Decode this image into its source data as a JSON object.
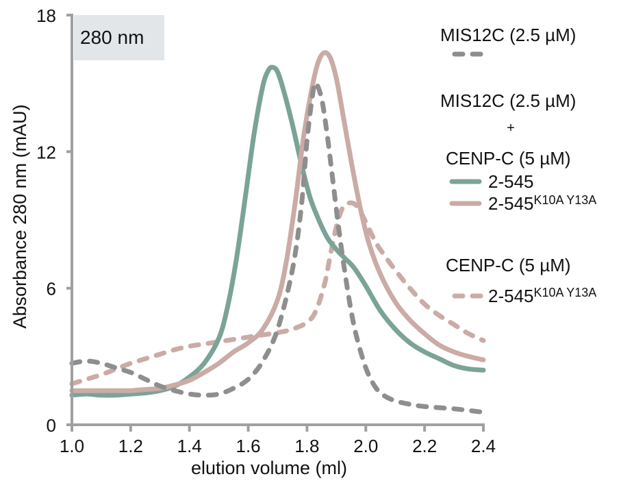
{
  "chart_data": {
    "type": "line",
    "title": "",
    "annotation": "280 nm",
    "xlabel": "elution volume (ml)",
    "ylabel": "Absorbance 280 nm (mAU)",
    "xlim": [
      1.0,
      2.4
    ],
    "ylim": [
      0,
      18
    ],
    "xticks": [
      1.0,
      1.2,
      1.4,
      1.6,
      1.8,
      2.0,
      2.2,
      2.4
    ],
    "xtick_labels": [
      "1.0",
      "1.2",
      "1.4",
      "1.6",
      "1.8",
      "2.0",
      "2.2",
      "2.4"
    ],
    "yticks": [
      0,
      6,
      12,
      18
    ],
    "ytick_labels": [
      "0",
      "6",
      "12",
      "18"
    ],
    "grid": false,
    "legend_position": "right",
    "legend": {
      "group1_title": "MIS12C (2.5 µM)",
      "group2_title_line1": "MIS12C (2.5 µM)",
      "group2_plus": "+",
      "group2_title_line2": "CENP-C (5 µM)",
      "group3_title": "CENP-C (5 µM)",
      "entries": [
        {
          "series": "mis12c",
          "label": "",
          "sup": ""
        },
        {
          "series": "mis12c_cenpc_wt",
          "label": "2-545",
          "sup": ""
        },
        {
          "series": "mis12c_cenpc_mut",
          "label": "2-545",
          "sup": "K10A Y13A"
        },
        {
          "series": "cenpc_mut",
          "label": "2-545",
          "sup": "K10A Y13A"
        }
      ]
    },
    "series": [
      {
        "id": "mis12c",
        "name": "MIS12C (2.5 µM)",
        "color": "#8e8e8e",
        "style": "dashed",
        "x": [
          1.0,
          1.05,
          1.1,
          1.15,
          1.2,
          1.25,
          1.3,
          1.35,
          1.4,
          1.45,
          1.5,
          1.55,
          1.6,
          1.65,
          1.7,
          1.75,
          1.78,
          1.8,
          1.82,
          1.83,
          1.85,
          1.87,
          1.89,
          1.91,
          1.93,
          1.95,
          1.97,
          2.0,
          2.03,
          2.06,
          2.1,
          2.15,
          2.2,
          2.3,
          2.4
        ],
        "y": [
          2.7,
          2.8,
          2.7,
          2.5,
          2.3,
          2.0,
          1.7,
          1.5,
          1.35,
          1.3,
          1.35,
          1.6,
          2.0,
          2.8,
          4.2,
          6.8,
          9.5,
          12.5,
          14.6,
          15.0,
          14.3,
          12.6,
          10.5,
          8.4,
          6.6,
          5.0,
          3.8,
          2.5,
          1.7,
          1.3,
          1.05,
          0.9,
          0.8,
          0.7,
          0.55
        ]
      },
      {
        "id": "mis12c_cenpc_wt",
        "name": "MIS12C + CENP-C 2-545",
        "color": "#7ba398",
        "style": "solid",
        "x": [
          1.0,
          1.05,
          1.1,
          1.15,
          1.2,
          1.25,
          1.3,
          1.35,
          1.4,
          1.45,
          1.5,
          1.53,
          1.56,
          1.59,
          1.62,
          1.65,
          1.67,
          1.685,
          1.7,
          1.72,
          1.75,
          1.78,
          1.81,
          1.84,
          1.87,
          1.9,
          1.93,
          1.96,
          2.0,
          2.05,
          2.1,
          2.15,
          2.2,
          2.25,
          2.3,
          2.35,
          2.4
        ],
        "y": [
          1.3,
          1.35,
          1.3,
          1.3,
          1.35,
          1.4,
          1.5,
          1.7,
          2.1,
          2.7,
          3.8,
          5.2,
          7.3,
          10.0,
          12.8,
          14.9,
          15.6,
          15.7,
          15.5,
          14.7,
          13.2,
          11.5,
          10.0,
          9.0,
          8.2,
          7.7,
          7.3,
          6.9,
          6.1,
          5.0,
          4.2,
          3.6,
          3.2,
          2.9,
          2.6,
          2.45,
          2.4
        ]
      },
      {
        "id": "mis12c_cenpc_mut",
        "name": "MIS12C + CENP-C 2-545 K10A Y13A",
        "color": "#cbaba6",
        "style": "solid",
        "x": [
          1.0,
          1.05,
          1.1,
          1.15,
          1.2,
          1.25,
          1.3,
          1.35,
          1.4,
          1.45,
          1.5,
          1.55,
          1.6,
          1.65,
          1.7,
          1.73,
          1.76,
          1.79,
          1.82,
          1.84,
          1.86,
          1.88,
          1.9,
          1.92,
          1.95,
          1.98,
          2.01,
          2.05,
          2.1,
          2.15,
          2.2,
          2.25,
          2.3,
          2.35,
          2.4
        ],
        "y": [
          1.5,
          1.5,
          1.5,
          1.5,
          1.5,
          1.55,
          1.6,
          1.75,
          1.95,
          2.3,
          2.7,
          3.2,
          3.6,
          4.2,
          5.5,
          7.2,
          9.8,
          12.8,
          15.0,
          16.0,
          16.35,
          16.1,
          15.2,
          13.8,
          11.6,
          9.6,
          8.0,
          6.6,
          5.4,
          4.6,
          4.0,
          3.5,
          3.2,
          3.0,
          2.85
        ]
      },
      {
        "id": "cenpc_mut",
        "name": "CENP-C (5 µM) 2-545 K10A Y13A",
        "color": "#cbaba6",
        "style": "dashed",
        "x": [
          1.0,
          1.05,
          1.1,
          1.15,
          1.2,
          1.25,
          1.3,
          1.35,
          1.4,
          1.45,
          1.5,
          1.55,
          1.6,
          1.65,
          1.7,
          1.75,
          1.8,
          1.83,
          1.86,
          1.88,
          1.9,
          1.92,
          1.945,
          1.97,
          2.0,
          2.03,
          2.06,
          2.1,
          2.15,
          2.2,
          2.25,
          2.3,
          2.35,
          2.4
        ],
        "y": [
          1.8,
          2.0,
          2.2,
          2.45,
          2.7,
          2.9,
          3.1,
          3.3,
          3.45,
          3.55,
          3.65,
          3.75,
          3.85,
          3.95,
          4.05,
          4.2,
          4.5,
          5.0,
          6.2,
          7.5,
          8.7,
          9.5,
          9.75,
          9.6,
          8.9,
          8.1,
          7.5,
          6.8,
          6.0,
          5.3,
          4.8,
          4.4,
          4.0,
          3.7
        ]
      }
    ]
  }
}
